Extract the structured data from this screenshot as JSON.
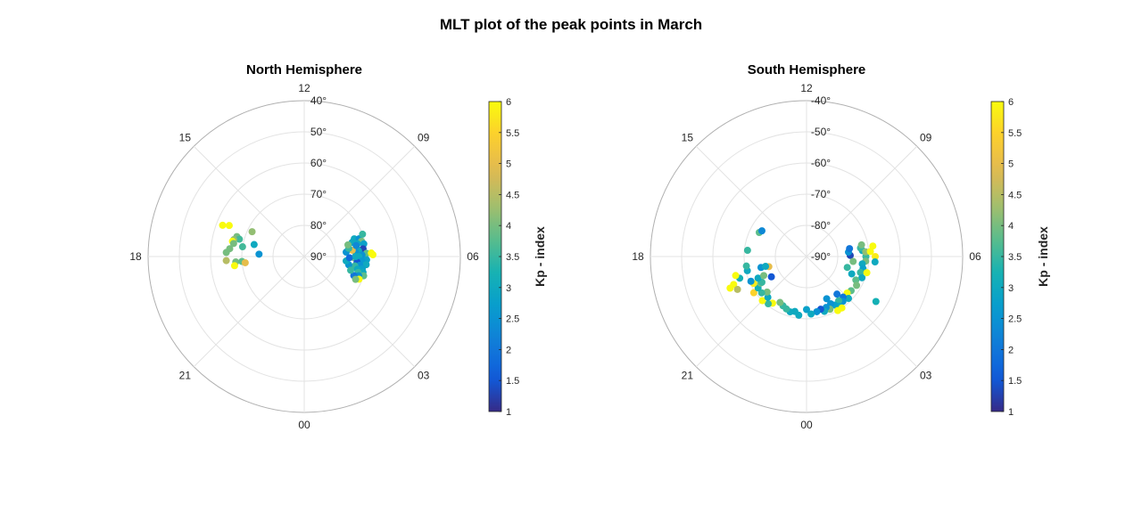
{
  "figure": {
    "title": "MLT plot of the peak points in March"
  },
  "chart_data": [
    {
      "type": "scatter",
      "subtype": "polar",
      "title": "North Hemisphere",
      "theta_labels": [
        "12",
        "09",
        "06",
        "03",
        "00",
        "21",
        "18",
        "15"
      ],
      "r_labels": [
        "40°",
        "50°",
        "60°",
        "70°",
        "80°",
        "90°"
      ],
      "r_range": [
        90,
        40
      ],
      "grid": true,
      "colorbar": {
        "label": "Kp - index",
        "range": [
          1,
          6
        ],
        "ticks": [
          "1",
          "1.5",
          "2",
          "2.5",
          "3",
          "3.5",
          "4",
          "4.5",
          "5",
          "5.5",
          "6"
        ],
        "colormap": "parula"
      },
      "points": [
        {
          "mlt": 16.5,
          "lat": 64.0,
          "kp": 6.0
        },
        {
          "mlt": 16.6,
          "lat": 62.0,
          "kp": 6.0
        },
        {
          "mlt": 16.9,
          "lat": 67.5,
          "kp": 4.0
        },
        {
          "mlt": 17.0,
          "lat": 68.5,
          "kp": 3.6
        },
        {
          "mlt": 17.1,
          "lat": 66.8,
          "kp": 4.2
        },
        {
          "mlt": 17.2,
          "lat": 66.5,
          "kp": 6.0
        },
        {
          "mlt": 17.3,
          "lat": 67.0,
          "kp": 4.0
        },
        {
          "mlt": 17.6,
          "lat": 66.0,
          "kp": 4.0
        },
        {
          "mlt": 17.8,
          "lat": 65.0,
          "kp": 4.0
        },
        {
          "mlt": 17.4,
          "lat": 70.0,
          "kp": 3.6
        },
        {
          "mlt": 16.3,
          "lat": 71.5,
          "kp": 4.2
        },
        {
          "mlt": 17.1,
          "lat": 73.5,
          "kp": 3.0
        },
        {
          "mlt": 18.2,
          "lat": 65.0,
          "kp": 4.5
        },
        {
          "mlt": 18.3,
          "lat": 68.0,
          "kp": 4.0
        },
        {
          "mlt": 18.3,
          "lat": 70.0,
          "kp": 3.8
        },
        {
          "mlt": 18.4,
          "lat": 71.0,
          "kp": 5.0
        },
        {
          "mlt": 18.5,
          "lat": 67.5,
          "kp": 6.0
        },
        {
          "mlt": 17.8,
          "lat": 75.5,
          "kp": 2.5
        },
        {
          "mlt": 7.3,
          "lat": 73.0,
          "kp": 3.0
        },
        {
          "mlt": 7.2,
          "lat": 71.5,
          "kp": 2.5
        },
        {
          "mlt": 7.4,
          "lat": 70.0,
          "kp": 3.5
        },
        {
          "mlt": 7.0,
          "lat": 71.0,
          "kp": 4.0
        },
        {
          "mlt": 6.9,
          "lat": 72.5,
          "kp": 3.0
        },
        {
          "mlt": 7.1,
          "lat": 74.0,
          "kp": 3.0
        },
        {
          "mlt": 6.8,
          "lat": 70.5,
          "kp": 2.8
        },
        {
          "mlt": 6.6,
          "lat": 73.0,
          "kp": 3.5
        },
        {
          "mlt": 6.5,
          "lat": 71.0,
          "kp": 1.3
        },
        {
          "mlt": 6.4,
          "lat": 72.5,
          "kp": 3.0
        },
        {
          "mlt": 6.3,
          "lat": 73.5,
          "kp": 2.5
        },
        {
          "mlt": 6.2,
          "lat": 70.0,
          "kp": 3.8
        },
        {
          "mlt": 6.1,
          "lat": 71.5,
          "kp": 2.5
        },
        {
          "mlt": 6.0,
          "lat": 72.5,
          "kp": 3.0
        },
        {
          "mlt": 5.9,
          "lat": 74.0,
          "kp": 4.0
        },
        {
          "mlt": 5.8,
          "lat": 70.0,
          "kp": 2.8
        },
        {
          "mlt": 5.7,
          "lat": 71.5,
          "kp": 2.6
        },
        {
          "mlt": 5.6,
          "lat": 73.0,
          "kp": 1.5
        },
        {
          "mlt": 5.5,
          "lat": 70.0,
          "kp": 3.0
        },
        {
          "mlt": 5.4,
          "lat": 72.0,
          "kp": 2.5
        },
        {
          "mlt": 5.3,
          "lat": 73.5,
          "kp": 3.5
        },
        {
          "mlt": 5.2,
          "lat": 71.0,
          "kp": 2.8
        },
        {
          "mlt": 5.1,
          "lat": 72.5,
          "kp": 3.0
        },
        {
          "mlt": 5.0,
          "lat": 70.5,
          "kp": 3.0
        },
        {
          "mlt": 4.9,
          "lat": 72.0,
          "kp": 3.5
        },
        {
          "mlt": 4.8,
          "lat": 70.0,
          "kp": 3.8
        },
        {
          "mlt": 4.7,
          "lat": 71.5,
          "kp": 2.5
        },
        {
          "mlt": 4.6,
          "lat": 73.0,
          "kp": 2.0
        },
        {
          "mlt": 4.5,
          "lat": 71.0,
          "kp": 6.0
        },
        {
          "mlt": 4.4,
          "lat": 72.0,
          "kp": 4.0
        },
        {
          "mlt": 6.2,
          "lat": 68.5,
          "kp": 6.0
        },
        {
          "mlt": 6.1,
          "lat": 68.0,
          "kp": 6.0
        },
        {
          "mlt": 6.5,
          "lat": 74.5,
          "kp": 5.0
        },
        {
          "mlt": 6.4,
          "lat": 76.5,
          "kp": 2.5
        },
        {
          "mlt": 6.7,
          "lat": 75.5,
          "kp": 3.5
        },
        {
          "mlt": 7.0,
          "lat": 75.5,
          "kp": 4.0
        },
        {
          "mlt": 5.3,
          "lat": 75.5,
          "kp": 2.5
        },
        {
          "mlt": 5.6,
          "lat": 76.5,
          "kp": 3.0
        },
        {
          "mlt": 4.9,
          "lat": 74.5,
          "kp": 3.5
        },
        {
          "mlt": 5.9,
          "lat": 75.5,
          "kp": 1.8
        },
        {
          "mlt": 6.0,
          "lat": 73.5,
          "kp": 3.0
        },
        {
          "mlt": 6.8,
          "lat": 73.0,
          "kp": 2.3
        }
      ]
    },
    {
      "type": "scatter",
      "subtype": "polar",
      "title": "South Hemisphere",
      "theta_labels": [
        "12",
        "09",
        "06",
        "03",
        "00",
        "21",
        "18",
        "15"
      ],
      "r_labels": [
        "-40°",
        "-50°",
        "-60°",
        "-70°",
        "-80°",
        "-90°"
      ],
      "r_range": [
        -90,
        -40
      ],
      "grid": true,
      "colorbar": {
        "label": "Kp - index",
        "range": [
          1,
          6
        ],
        "ticks": [
          "1",
          "1.5",
          "2",
          "2.5",
          "3",
          "3.5",
          "4",
          "4.5",
          "5",
          "5.5",
          "6"
        ],
        "colormap": "parula"
      },
      "points": [
        {
          "mlt": 6.0,
          "lat": -71.0,
          "kp": 3.5
        },
        {
          "mlt": 5.7,
          "lat": -71.0,
          "kp": 4.0
        },
        {
          "mlt": 5.5,
          "lat": -72.0,
          "kp": 3.0
        },
        {
          "mlt": 5.2,
          "lat": -71.5,
          "kp": 2.8
        },
        {
          "mlt": 4.9,
          "lat": -72.0,
          "kp": 3.5
        },
        {
          "mlt": 4.6,
          "lat": -71.0,
          "kp": 3.0
        },
        {
          "mlt": 4.3,
          "lat": -72.5,
          "kp": 3.8
        },
        {
          "mlt": 4.0,
          "lat": -71.5,
          "kp": 4.0
        },
        {
          "mlt": 6.4,
          "lat": -72.0,
          "kp": 3.0
        },
        {
          "mlt": 6.6,
          "lat": -72.5,
          "kp": 3.5
        },
        {
          "mlt": 6.8,
          "lat": -72.0,
          "kp": 4.0
        },
        {
          "mlt": 6.3,
          "lat": -71.0,
          "kp": 4.2
        },
        {
          "mlt": 6.3,
          "lat": -69.5,
          "kp": 6.0
        },
        {
          "mlt": 6.6,
          "lat": -68.5,
          "kp": 6.0
        },
        {
          "mlt": 6.0,
          "lat": -68.0,
          "kp": 5.8
        },
        {
          "mlt": 5.0,
          "lat": -70.0,
          "kp": 6.0
        },
        {
          "mlt": 5.7,
          "lat": -68.0,
          "kp": 3.0
        },
        {
          "mlt": 6.1,
          "lat": -76.0,
          "kp": 1.3
        },
        {
          "mlt": 6.4,
          "lat": -76.5,
          "kp": 2.5
        },
        {
          "mlt": 6.7,
          "lat": -76.0,
          "kp": 2.0
        },
        {
          "mlt": 5.6,
          "lat": -75.0,
          "kp": 4.0
        },
        {
          "mlt": 5.0,
          "lat": -76.5,
          "kp": 3.5
        },
        {
          "mlt": 4.6,
          "lat": -74.5,
          "kp": 3.0
        },
        {
          "mlt": 3.5,
          "lat": -72.0,
          "kp": 3.8
        },
        {
          "mlt": 3.2,
          "lat": -72.5,
          "kp": 6.0
        },
        {
          "mlt": 3.0,
          "lat": -71.0,
          "kp": 3.0
        },
        {
          "mlt": 2.8,
          "lat": -72.5,
          "kp": 2.0
        },
        {
          "mlt": 2.6,
          "lat": -71.5,
          "kp": 2.5
        },
        {
          "mlt": 2.4,
          "lat": -72.5,
          "kp": 3.5
        },
        {
          "mlt": 2.2,
          "lat": -71.0,
          "kp": 3.0
        },
        {
          "mlt": 2.0,
          "lat": -72.0,
          "kp": 2.8
        },
        {
          "mlt": 1.8,
          "lat": -73.0,
          "kp": 2.5
        },
        {
          "mlt": 1.6,
          "lat": -71.5,
          "kp": 4.0
        },
        {
          "mlt": 1.4,
          "lat": -72.5,
          "kp": 2.5
        },
        {
          "mlt": 1.2,
          "lat": -71.5,
          "kp": 3.0
        },
        {
          "mlt": 1.0,
          "lat": -72.5,
          "kp": 1.5
        },
        {
          "mlt": 0.7,
          "lat": -72.0,
          "kp": 2.5
        },
        {
          "mlt": 0.3,
          "lat": -71.5,
          "kp": 3.0
        },
        {
          "mlt": 0.0,
          "lat": -73.0,
          "kp": 2.8
        },
        {
          "mlt": 2.3,
          "lat": -70.0,
          "kp": 6.0
        },
        {
          "mlt": 2.0,
          "lat": -70.0,
          "kp": 6.0
        },
        {
          "mlt": 2.6,
          "lat": -74.5,
          "kp": 2.0
        },
        {
          "mlt": 1.7,
          "lat": -75.0,
          "kp": 2.5
        },
        {
          "mlt": 3.8,
          "lat": -63.5,
          "kp": 3.2
        },
        {
          "mlt": 23.5,
          "lat": -71.0,
          "kp": 3.0
        },
        {
          "mlt": 23.2,
          "lat": -72.0,
          "kp": 3.0
        },
        {
          "mlt": 22.9,
          "lat": -71.5,
          "kp": 3.0
        },
        {
          "mlt": 22.6,
          "lat": -72.0,
          "kp": 3.5
        },
        {
          "mlt": 22.3,
          "lat": -72.5,
          "kp": 3.5
        },
        {
          "mlt": 22.0,
          "lat": -73.0,
          "kp": 4.0
        },
        {
          "mlt": 21.6,
          "lat": -71.5,
          "kp": 6.0
        },
        {
          "mlt": 21.4,
          "lat": -70.5,
          "kp": 3.5
        },
        {
          "mlt": 21.0,
          "lat": -70.0,
          "kp": 6.0
        },
        {
          "mlt": 21.1,
          "lat": -72.0,
          "kp": 3.0
        },
        {
          "mlt": 20.8,
          "lat": -73.0,
          "kp": 4.0
        },
        {
          "mlt": 20.6,
          "lat": -71.5,
          "kp": 3.5
        },
        {
          "mlt": 20.3,
          "lat": -69.5,
          "kp": 5.5
        },
        {
          "mlt": 20.2,
          "lat": -71.5,
          "kp": 3.2
        },
        {
          "mlt": 20.0,
          "lat": -73.0,
          "kp": 4.0
        },
        {
          "mlt": 19.8,
          "lat": -71.0,
          "kp": 5.8
        },
        {
          "mlt": 19.6,
          "lat": -70.5,
          "kp": 2.5
        },
        {
          "mlt": 20.0,
          "lat": -73.5,
          "kp": 3.5
        },
        {
          "mlt": 19.4,
          "lat": -65.0,
          "kp": 6.0
        },
        {
          "mlt": 19.5,
          "lat": -63.5,
          "kp": 6.0
        },
        {
          "mlt": 19.7,
          "lat": -65.5,
          "kp": 4.5
        },
        {
          "mlt": 19.2,
          "lat": -67.5,
          "kp": 3.2
        },
        {
          "mlt": 19.0,
          "lat": -66.5,
          "kp": 6.0
        },
        {
          "mlt": 18.9,
          "lat": -70.5,
          "kp": 3.0
        },
        {
          "mlt": 19.6,
          "lat": -73.0,
          "kp": 3.0
        },
        {
          "mlt": 18.6,
          "lat": -70.5,
          "kp": 3.5
        },
        {
          "mlt": 17.6,
          "lat": -71.0,
          "kp": 3.5
        },
        {
          "mlt": 19.6,
          "lat": -75.0,
          "kp": 4.0
        },
        {
          "mlt": 18.9,
          "lat": -75.0,
          "kp": 2.5
        },
        {
          "mlt": 19.0,
          "lat": -77.5,
          "kp": 5.0
        },
        {
          "mlt": 20.0,
          "lat": -77.0,
          "kp": 1.5
        },
        {
          "mlt": 18.9,
          "lat": -76.5,
          "kp": 3.0
        },
        {
          "mlt": 16.2,
          "lat": -73.0,
          "kp": 3.8
        },
        {
          "mlt": 16.0,
          "lat": -73.5,
          "kp": 2.3
        }
      ]
    }
  ]
}
